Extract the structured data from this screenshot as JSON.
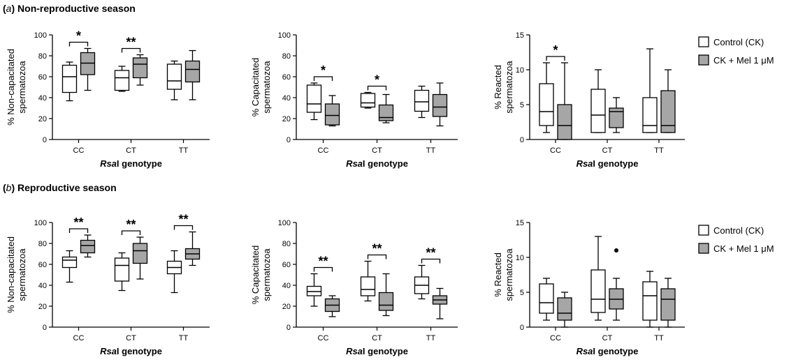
{
  "sections": [
    {
      "label": "a",
      "title": "Non-reproductive season"
    },
    {
      "label": "b",
      "title": "Reproductive season"
    }
  ],
  "legend": {
    "control": "Control (CK)",
    "treated": "CK + Mel 1 μM",
    "control_color": "#ffffff",
    "treated_color": "#a6a6a6"
  },
  "chart_data": [
    {
      "type": "box",
      "title": "",
      "ylabel": [
        "% Non-capacitated",
        "spermatozoa"
      ],
      "xlabel": {
        "italic": "Rsa",
        "rest": "I genotype"
      },
      "categories": [
        "CC",
        "CT",
        "TT"
      ],
      "ylim": [
        0,
        100
      ],
      "yticks": [
        0,
        20,
        40,
        60,
        80,
        100
      ],
      "series": [
        {
          "name": "Control (CK)",
          "boxes": [
            [
              37,
              45,
              60,
              71,
              74
            ],
            [
              46,
              47,
              59,
              66,
              70
            ],
            [
              38,
              48,
              56,
              72,
              75
            ]
          ]
        },
        {
          "name": "CK + Mel 1 μM",
          "boxes": [
            [
              47,
              62,
              73,
              83,
              87
            ],
            [
              52,
              59,
              72,
              78,
              81
            ],
            [
              38,
              55,
              67,
              75,
              85
            ]
          ]
        }
      ],
      "significance": [
        {
          "category": 0,
          "label": "*"
        },
        {
          "category": 1,
          "label": "**"
        }
      ]
    },
    {
      "type": "box",
      "title": "",
      "ylabel": [
        "% Capacitated",
        "spermatozoa"
      ],
      "xlabel": {
        "italic": "Rsa",
        "rest": "I genotype"
      },
      "categories": [
        "CC",
        "CT",
        "TT"
      ],
      "ylim": [
        0,
        100
      ],
      "yticks": [
        0,
        20,
        40,
        60,
        80,
        100
      ],
      "series": [
        {
          "name": "Control (CK)",
          "boxes": [
            [
              19,
              26,
              34,
              52,
              54
            ],
            [
              30,
              31,
              35,
              44,
              45
            ],
            [
              21,
              27,
              36,
              47,
              51
            ]
          ]
        },
        {
          "name": "CK + Mel 1 μM",
          "boxes": [
            [
              13,
              14,
              23,
              34,
              42
            ],
            [
              16,
              18,
              21,
              33,
              43
            ],
            [
              13,
              22,
              31,
              43,
              54
            ]
          ]
        }
      ],
      "significance": [
        {
          "category": 0,
          "label": "*"
        },
        {
          "category": 1,
          "label": "*"
        }
      ]
    },
    {
      "type": "box",
      "title": "",
      "ylabel": [
        "% Reacted",
        "spermatozoa"
      ],
      "xlabel": {
        "italic": "Rsa",
        "rest": "I genotype"
      },
      "categories": [
        "CC",
        "CT",
        "TT"
      ],
      "ylim": [
        0,
        15
      ],
      "yticks": [
        0,
        5,
        10,
        15
      ],
      "series": [
        {
          "name": "Control (CK)",
          "boxes": [
            [
              1,
              2,
              4,
              8,
              11
            ],
            [
              1,
              1,
              3.5,
              7.2,
              10
            ],
            [
              1,
              1,
              2,
              6,
              13
            ]
          ]
        },
        {
          "name": "CK + Mel 1 μM",
          "boxes": [
            [
              0,
              0,
              2,
              5,
              11
            ],
            [
              1,
              1.7,
              4,
              4.5,
              6
            ],
            [
              1,
              1,
              2,
              7,
              10
            ]
          ]
        }
      ],
      "significance": [
        {
          "category": 0,
          "label": "*"
        }
      ]
    },
    {
      "type": "box",
      "title": "",
      "ylabel": [
        "% Non-capacitated",
        "spermatozoa"
      ],
      "xlabel": {
        "italic": "Rsa",
        "rest": "I genotype"
      },
      "categories": [
        "CC",
        "CT",
        "TT"
      ],
      "ylim": [
        0,
        100
      ],
      "yticks": [
        0,
        20,
        40,
        60,
        80,
        100
      ],
      "series": [
        {
          "name": "Control (CK)",
          "boxes": [
            [
              43,
              57,
              64,
              67,
              73
            ],
            [
              35,
              44,
              59,
              66,
              71
            ],
            [
              33,
              51,
              57,
              63,
              73
            ]
          ]
        },
        {
          "name": "CK + Mel 1 μM",
          "boxes": [
            [
              67,
              71,
              78,
              83,
              88
            ],
            [
              46,
              61,
              73,
              80,
              86
            ],
            [
              59,
              65,
              70,
              75,
              91
            ]
          ]
        }
      ],
      "significance": [
        {
          "category": 0,
          "label": "**"
        },
        {
          "category": 1,
          "label": "**"
        },
        {
          "category": 2,
          "label": "**"
        }
      ]
    },
    {
      "type": "box",
      "title": "",
      "ylabel": [
        "% Capacitated",
        "spermatozoa"
      ],
      "xlabel": {
        "italic": "Rsa",
        "rest": "I genotype"
      },
      "categories": [
        "CC",
        "CT",
        "TT"
      ],
      "ylim": [
        0,
        100
      ],
      "yticks": [
        0,
        20,
        40,
        60,
        80,
        100
      ],
      "series": [
        {
          "name": "Control (CK)",
          "boxes": [
            [
              20,
              30,
              34,
              39,
              51
            ],
            [
              25,
              30,
              36,
              48,
              63
            ],
            [
              27,
              32,
              40,
              48,
              59
            ]
          ]
        },
        {
          "name": "CK + Mel 1 μM",
          "boxes": [
            [
              10,
              15,
              21,
              27,
              30
            ],
            [
              11,
              16,
              21,
              33,
              51
            ],
            [
              8,
              22,
              26,
              30,
              37
            ]
          ]
        }
      ],
      "significance": [
        {
          "category": 0,
          "label": "**"
        },
        {
          "category": 1,
          "label": "**"
        },
        {
          "category": 2,
          "label": "**"
        }
      ]
    },
    {
      "type": "box",
      "title": "",
      "ylabel": [
        "% Reacted",
        "spermatozoa"
      ],
      "xlabel": {
        "italic": "Rsa",
        "rest": "I genotype"
      },
      "categories": [
        "CC",
        "CT",
        "TT"
      ],
      "ylim": [
        0,
        15
      ],
      "yticks": [
        0,
        5,
        10,
        15
      ],
      "series": [
        {
          "name": "Control (CK)",
          "boxes": [
            [
              1,
              2,
              3.5,
              6.2,
              7
            ],
            [
              1,
              2.1,
              4,
              8.2,
              13
            ],
            [
              0,
              1,
              4.5,
              6.5,
              8
            ]
          ],
          "outliers": []
        },
        {
          "name": "CK + Mel 1 μM",
          "boxes": [
            [
              0,
              1,
              2,
              4.2,
              5
            ],
            [
              1,
              2.6,
              4,
              5.5,
              7
            ],
            [
              0,
              1,
              4,
              5.5,
              7
            ]
          ],
          "outliers": [
            [
              1,
              11
            ]
          ]
        }
      ],
      "significance": []
    }
  ]
}
